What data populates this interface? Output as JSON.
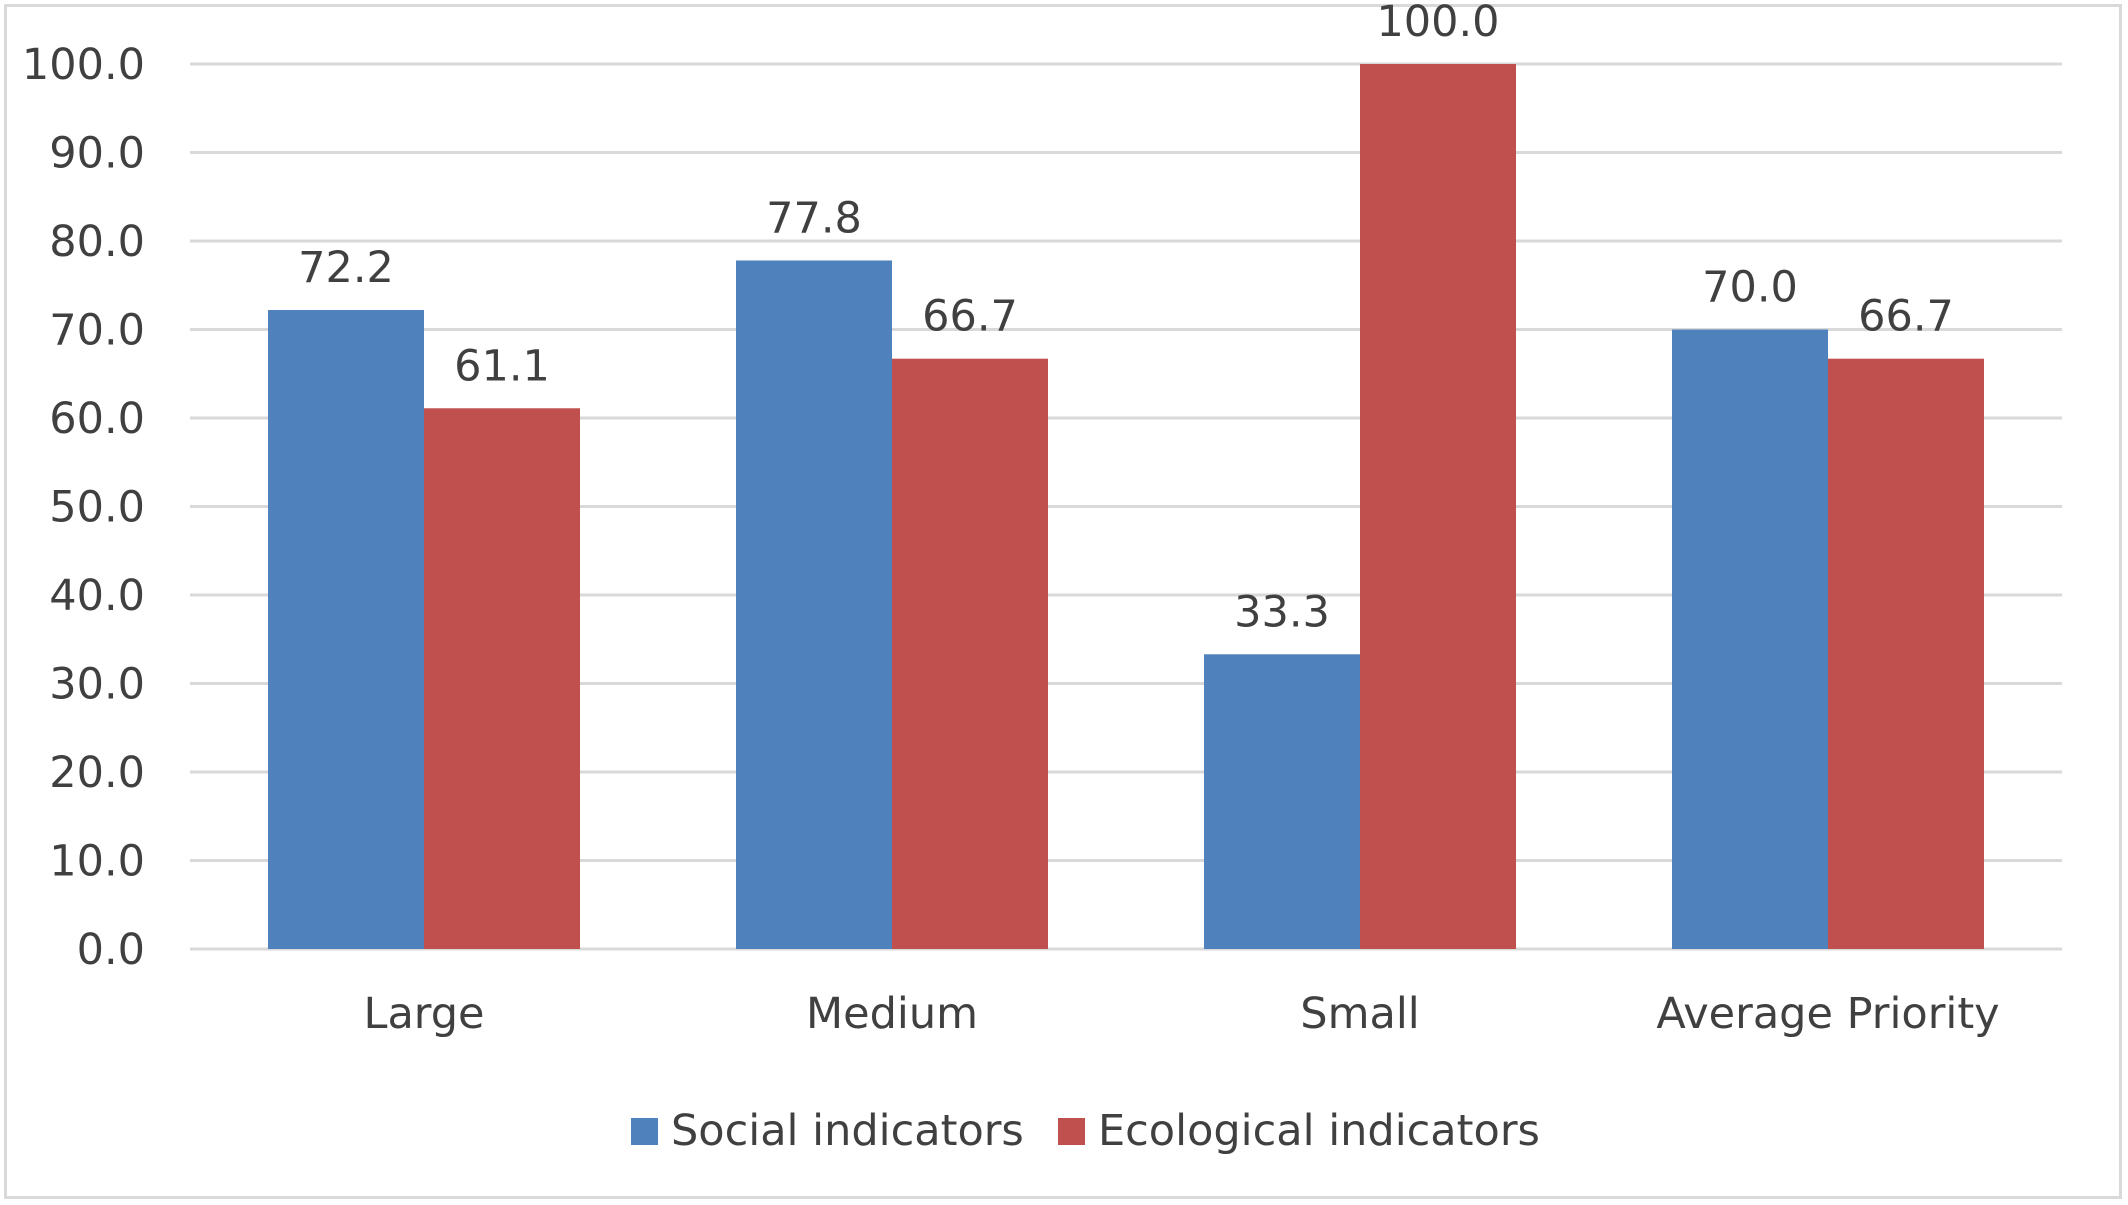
{
  "chart_data": {
    "type": "bar",
    "categories": [
      "Large",
      "Medium",
      "Small",
      "Average Priority"
    ],
    "series": [
      {
        "name": "Social indicators",
        "color": "#4f81bd",
        "values": [
          72.2,
          77.8,
          33.3,
          70.0
        ],
        "labels": [
          "72.2",
          "77.8",
          "33.3",
          "70.0"
        ]
      },
      {
        "name": "Ecological indicators",
        "color": "#c0504d",
        "values": [
          61.1,
          66.7,
          100.0,
          66.7
        ],
        "labels": [
          "61.1",
          "66.7",
          "100.0",
          "66.7"
        ]
      }
    ],
    "yticks": [
      "0.0",
      "10.0",
      "20.0",
      "30.0",
      "40.0",
      "50.0",
      "60.0",
      "70.0",
      "80.0",
      "90.0",
      "100.0"
    ],
    "ylim": [
      0,
      100
    ],
    "grid": true,
    "legend_position": "bottom",
    "title": "",
    "xlabel": "",
    "ylabel": ""
  }
}
